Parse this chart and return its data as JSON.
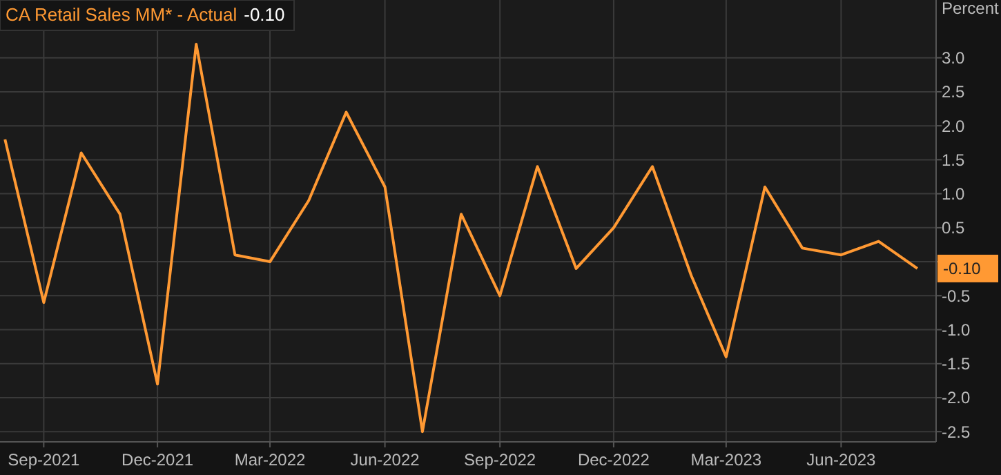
{
  "chart_data": {
    "type": "line",
    "title": "CA Retail Sales MM* - Actual",
    "ylabel": "Percent",
    "annotations": [
      "-0.10",
      "-0.10"
    ],
    "x": [
      "2021-08-01",
      "2021-09-01",
      "2021-10-01",
      "2021-11-01",
      "2021-12-01",
      "2022-01-01",
      "2022-02-01",
      "2022-03-01",
      "2022-04-01",
      "2022-05-01",
      "2022-06-01",
      "2022-07-01",
      "2022-08-01",
      "2022-09-01",
      "2022-10-01",
      "2022-11-01",
      "2022-12-01",
      "2023-01-01",
      "2023-02-01",
      "2023-03-01",
      "2023-04-01",
      "2023-05-01",
      "2023-06-01",
      "2023-07-01",
      "2023-08-01"
    ],
    "series": [
      {
        "color": "#ff9933",
        "values": [
          1.8,
          -0.6,
          1.6,
          0.7,
          -1.8,
          3.2,
          0.1,
          0.0,
          0.9,
          2.2,
          1.1,
          -2.5,
          0.7,
          -0.5,
          1.4,
          -0.1,
          0.5,
          1.4,
          -0.2,
          -1.4,
          1.1,
          0.2,
          0.1,
          0.3,
          -0.1
        ]
      }
    ],
    "xlim": [
      "2021-07-28",
      "2023-08-16"
    ],
    "xticks": [
      {
        "value": "2021-09-01",
        "label": "Sep-2021"
      },
      {
        "value": "2021-12-01",
        "label": "Dec-2021"
      },
      {
        "value": "2022-03-01",
        "label": "Mar-2022"
      },
      {
        "value": "2022-06-01",
        "label": "Jun-2022"
      },
      {
        "value": "2022-09-01",
        "label": "Sep-2022"
      },
      {
        "value": "2022-12-01",
        "label": "Dec-2022"
      },
      {
        "value": "2023-03-01",
        "label": "Mar-2023"
      },
      {
        "value": "2023-06-01",
        "label": "Jun-2023"
      }
    ],
    "ylim": [
      -2.65,
      3.85
    ],
    "yticks": [
      {
        "value": -2.5,
        "label": "-2.5"
      },
      {
        "value": -2,
        "label": "-2.0"
      },
      {
        "value": -1.5,
        "label": "-1.5"
      },
      {
        "value": -1,
        "label": "-1.0"
      },
      {
        "value": -0.5,
        "label": "-0.5"
      },
      {
        "value": 0,
        "label": null
      },
      {
        "value": 0.5,
        "label": "0.5"
      },
      {
        "value": 1,
        "label": "1.0"
      },
      {
        "value": 1.5,
        "label": "1.5"
      },
      {
        "value": 2,
        "label": "2.0"
      },
      {
        "value": 2.5,
        "label": "2.5"
      },
      {
        "value": 3,
        "label": "3.0"
      }
    ],
    "grid": true,
    "marker": "none",
    "line_style": "solid"
  }
}
